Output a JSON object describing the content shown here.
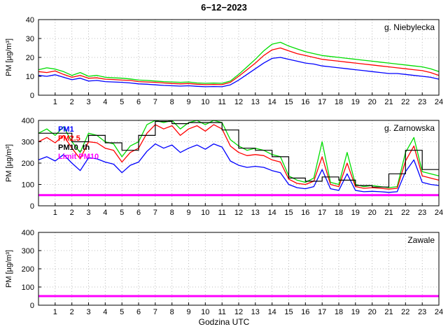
{
  "title": "6−12−2023",
  "xlabel": "Godzina UTC",
  "chart_data": [
    {
      "type": "line",
      "panel_title": "g. Niebylecka",
      "ylabel": "PM [µg/m³]",
      "ylim": [
        0,
        40
      ],
      "yticks": [
        0,
        10,
        20,
        30,
        40
      ],
      "xlim": [
        0,
        24
      ],
      "xticks": [
        1,
        2,
        3,
        4,
        5,
        6,
        7,
        8,
        9,
        10,
        11,
        12,
        13,
        14,
        15,
        16,
        17,
        18,
        19,
        20,
        21,
        22,
        23,
        24
      ],
      "x": [
        0,
        0.5,
        1,
        1.5,
        2,
        2.5,
        3,
        3.5,
        4,
        4.5,
        5,
        5.5,
        6,
        6.5,
        7,
        7.5,
        8,
        8.5,
        9,
        9.5,
        10,
        10.5,
        11,
        11.5,
        12,
        12.5,
        13,
        13.5,
        14,
        14.5,
        15,
        15.5,
        16,
        16.5,
        17,
        17.5,
        18,
        18.5,
        19,
        19.5,
        20,
        20.5,
        21,
        21.5,
        22,
        22.5,
        23,
        23.5,
        24
      ],
      "series": [
        {
          "name": "PM10",
          "color": "#00dd00",
          "values": [
            13.5,
            14.5,
            13.8,
            12.5,
            10.5,
            12,
            10,
            10.5,
            9.5,
            9.2,
            9,
            8.6,
            8,
            7.8,
            7.5,
            7.2,
            7,
            6.8,
            7,
            6.5,
            6.3,
            6.4,
            6.3,
            7.5,
            11,
            15,
            19,
            23.5,
            27,
            28,
            26,
            24.5,
            23,
            22,
            21,
            20.5,
            20,
            19.5,
            19,
            18.5,
            18,
            17.5,
            17,
            16.5,
            16,
            15.5,
            15,
            14,
            12.5
          ]
        },
        {
          "name": "PM2.5",
          "color": "#ff0000",
          "values": [
            12.5,
            12,
            12.8,
            11,
            9.5,
            10.5,
            9,
            9.2,
            8.5,
            8.3,
            8,
            7.8,
            7.2,
            7,
            6.8,
            6.5,
            6.2,
            6,
            6.2,
            5.8,
            5.6,
            5.7,
            5.6,
            6.8,
            10,
            13.5,
            17,
            21,
            24,
            25,
            23.5,
            22,
            21,
            20,
            19,
            18.5,
            18,
            17.5,
            17,
            16.5,
            16,
            15.5,
            15,
            14.5,
            14,
            13.5,
            13,
            12,
            10.5
          ]
        },
        {
          "name": "PM1",
          "color": "#0000ff",
          "values": [
            10.5,
            10,
            10.8,
            9.5,
            8.2,
            9,
            7.5,
            7.8,
            7.2,
            7,
            6.8,
            6.5,
            6,
            5.8,
            5.5,
            5.2,
            5,
            4.8,
            5,
            4.7,
            4.5,
            4.6,
            4.5,
            5.5,
            8,
            11,
            14,
            17,
            19.5,
            20,
            19,
            18,
            17,
            16.5,
            15.5,
            15,
            14.5,
            14,
            13.5,
            13,
            12.5,
            12,
            11.5,
            11.5,
            11,
            10.5,
            10,
            9.5,
            8.5
          ]
        }
      ]
    },
    {
      "type": "line",
      "panel_title": "g. Zarnowska",
      "ylabel": "PM [µg/m³]",
      "ylim": [
        0,
        400
      ],
      "yticks": [
        0,
        100,
        200,
        300,
        400
      ],
      "xlim": [
        0,
        24
      ],
      "xticks": [
        1,
        2,
        3,
        4,
        5,
        6,
        7,
        8,
        9,
        10,
        11,
        12,
        13,
        14,
        15,
        16,
        17,
        18,
        19,
        20,
        21,
        22,
        23,
        24
      ],
      "x": [
        0,
        0.5,
        1,
        1.5,
        2,
        2.5,
        3,
        3.5,
        4,
        4.5,
        5,
        5.5,
        6,
        6.5,
        7,
        7.5,
        8,
        8.5,
        9,
        9.5,
        10,
        10.5,
        11,
        11.5,
        12,
        12.5,
        13,
        13.5,
        14,
        14.5,
        15,
        15.5,
        16,
        16.5,
        17,
        17.5,
        18,
        18.5,
        19,
        19.5,
        20,
        20.5,
        21,
        21.5,
        22,
        22.5,
        23,
        23.5,
        24
      ],
      "legend": [
        {
          "label": "PM1",
          "color": "#0000ff"
        },
        {
          "label": "PM2.5",
          "color": "#ff0000"
        },
        {
          "label": "PM10_th",
          "color": "#000000"
        },
        {
          "label": "Limit PM10",
          "color": "#ff00ff"
        }
      ],
      "series": [
        {
          "name": "PM10",
          "color": "#00dd00",
          "values": [
            340,
            360,
            330,
            370,
            300,
            250,
            340,
            330,
            300,
            290,
            230,
            280,
            300,
            380,
            400,
            390,
            400,
            360,
            390,
            400,
            380,
            400,
            390,
            310,
            280,
            260,
            270,
            260,
            240,
            230,
            140,
            120,
            110,
            130,
            300,
            110,
            100,
            250,
            100,
            90,
            95,
            90,
            85,
            90,
            250,
            320,
            160,
            150,
            140
          ]
        },
        {
          "name": "PM2.5",
          "color": "#ff0000",
          "values": [
            300,
            320,
            295,
            330,
            270,
            220,
            300,
            295,
            270,
            260,
            205,
            250,
            270,
            340,
            380,
            360,
            375,
            330,
            360,
            375,
            350,
            380,
            360,
            280,
            250,
            235,
            240,
            235,
            215,
            205,
            125,
            105,
            100,
            115,
            230,
            100,
            90,
            200,
            90,
            82,
            85,
            82,
            78,
            82,
            210,
            280,
            140,
            130,
            120
          ]
        },
        {
          "name": "PM1",
          "color": "#0000ff",
          "values": [
            215,
            230,
            210,
            240,
            200,
            165,
            225,
            220,
            205,
            195,
            155,
            190,
            205,
            255,
            290,
            270,
            285,
            250,
            270,
            285,
            265,
            290,
            275,
            210,
            190,
            180,
            185,
            180,
            165,
            155,
            100,
            85,
            80,
            90,
            170,
            80,
            72,
            150,
            72,
            66,
            68,
            66,
            63,
            66,
            160,
            215,
            110,
            100,
            95
          ]
        },
        {
          "name": "PM10_th",
          "color": "#000000",
          "type": "step",
          "values": [
            340,
            340,
            300,
            330,
            295,
            260,
            330,
            395,
            385,
            390,
            390,
            355,
            270,
            260,
            230,
            130,
            115,
            135,
            120,
            95,
            88,
            150,
            260,
            170
          ]
        },
        {
          "name": "Limit PM10",
          "color": "#ff00ff",
          "type": "hline",
          "value": 50,
          "width": 3
        }
      ]
    },
    {
      "type": "line",
      "panel_title": "Zawale",
      "ylabel": "PM [µg/m³]",
      "ylim": [
        0,
        400
      ],
      "yticks": [
        0,
        100,
        200,
        300,
        400
      ],
      "xlim": [
        0,
        24
      ],
      "xticks": [
        1,
        2,
        3,
        4,
        5,
        6,
        7,
        8,
        9,
        10,
        11,
        12,
        13,
        14,
        15,
        16,
        17,
        18,
        19,
        20,
        21,
        22,
        23,
        24
      ],
      "x": [],
      "series": [
        {
          "name": "Limit PM10",
          "color": "#ff00ff",
          "type": "hline",
          "value": 50,
          "width": 3
        }
      ]
    }
  ]
}
